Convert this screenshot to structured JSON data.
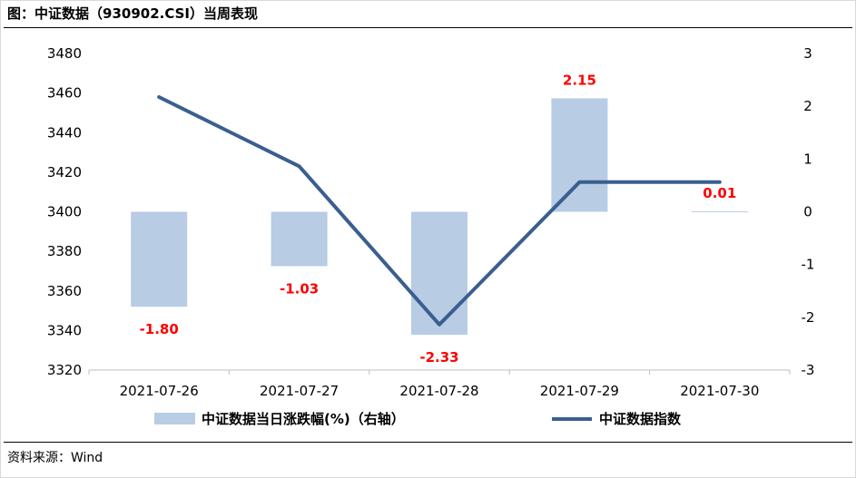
{
  "header": {
    "title_prefix": "图：",
    "title": "中证数据（930902.CSI）当周表现"
  },
  "footer": {
    "source": "资料来源：Wind"
  },
  "chart_data": {
    "type": "bar",
    "categories": [
      "2021-07-26",
      "2021-07-27",
      "2021-07-28",
      "2021-07-29",
      "2021-07-30"
    ],
    "series": [
      {
        "name": "中证数据当日涨跌幅(%)（右轴）",
        "type": "bar",
        "axis": "right",
        "values": [
          -1.8,
          -1.03,
          -2.33,
          2.15,
          0.01
        ],
        "value_labels": [
          "-1.80",
          "-1.03",
          "-2.33",
          "2.15",
          "0.01"
        ],
        "color": "#b8cce4"
      },
      {
        "name": "中证数据指数",
        "type": "line",
        "axis": "left",
        "values": [
          3458,
          3423,
          3343,
          3415,
          3415
        ],
        "color": "#3a5f8f"
      }
    ],
    "y_left": {
      "min": 3320,
      "max": 3480,
      "step": 20,
      "ticks": [
        "3320",
        "3340",
        "3360",
        "3380",
        "3400",
        "3420",
        "3440",
        "3460",
        "3480"
      ]
    },
    "y_right": {
      "min": -3,
      "max": 3,
      "step": 1,
      "ticks": [
        "-3",
        "-2",
        "-1",
        "0",
        "1",
        "2",
        "3"
      ]
    },
    "label_color": "#ff0000",
    "grid": false,
    "legend_position": "bottom"
  }
}
